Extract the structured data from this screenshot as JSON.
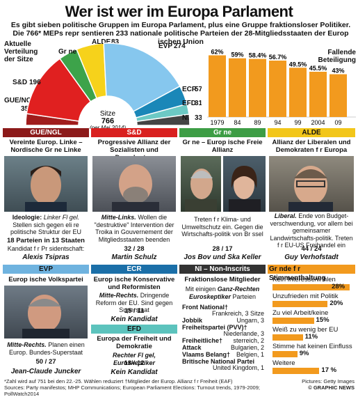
{
  "title": "Wer ist wer im Europa Parlament",
  "subtitle": "Es gibt sieben politische Gruppen im Europa Parlament, plus eine Gruppe fraktionsloser Politiker. Die 766* MEPs repr  sentieren 233 nationale politische Parteien der 28-Mitgliedsstaaten der Europ   ischen Union",
  "left_caption": [
    "Aktuelle",
    "Verteilung",
    "der Sitze"
  ],
  "right_caption": [
    "Fallende",
    "Beteiligung"
  ],
  "seats": {
    "center_label": "Sitze",
    "total": "766",
    "note": "(per Mai 2014)",
    "groups": [
      {
        "name": "GUE/NGL",
        "seats": 35,
        "color": "#a01c1c"
      },
      {
        "name": "S&D",
        "seats": 196,
        "color": "#e02020"
      },
      {
        "name": "Gr ne",
        "seats": 57,
        "color": "#3da34a"
      },
      {
        "name": "ALDE",
        "seats": 83,
        "color": "#f6d21b"
      },
      {
        "name": "EVP",
        "seats": 274,
        "color": "#86c7ee"
      },
      {
        "name": "ECR",
        "seats": 57,
        "color": "#1a87b8"
      },
      {
        "name": "EFD",
        "seats": 31,
        "color": "#6cc9c4"
      },
      {
        "name": "NI",
        "seats": 33,
        "color": "#444444"
      }
    ]
  },
  "chart_data": {
    "type": "bar",
    "title": "Fallende Beteiligung",
    "categories": [
      "1979",
      "84",
      "89",
      "94",
      "99",
      "2004",
      "09"
    ],
    "values": [
      62,
      59,
      58.4,
      56.7,
      49.5,
      45.5,
      43
    ],
    "value_labels": [
      "62%",
      "59%",
      "58.4%",
      "56.7%",
      "49.5%",
      "45.5%",
      "43%"
    ],
    "ylim": [
      0,
      70
    ],
    "color": "#f29a1e"
  },
  "groups": {
    "gue": {
      "header": "GUE/NGL",
      "subtitle": "Vereinte Europ. Linke – Nordische Gr ne Linke",
      "text_b": "Ideologie:",
      "text_i": "Linker Fl gel.",
      "text": "Stellen sich gegen eli re politische Struktur der EU",
      "stat": "18 Parteien in 13 Staaten",
      "candidate_label": "Kandidat f r Pr sidentschaft:",
      "leader": "Alexis Tsipras"
    },
    "sd": {
      "header": "S&D",
      "subtitle": "Progressive Allianz der Sozialisten und Demokraten",
      "text_b": "Mitte-Links.",
      "text": "Wollen die \"destruktive\" Intervention der Troika in Gouvernement der Mitgliedsstaaten beenden",
      "stat": "32 / 28",
      "leader": "Martin Schulz"
    },
    "gruene": {
      "header": "Gr ne",
      "subtitle": "Gr ne – Europ   ische Freie Allianz",
      "text": "Treten f r Klima- und Umweltschutz ein. Gegen die Wirtschafts-politik von Br ssel",
      "stat": "28 / 17",
      "leader": "Jos  Bov   und Ska Keller"
    },
    "alde": {
      "header": "ALDE",
      "subtitle": "Allianz der Liberalen und Demokraten f r Europa",
      "text_b": "Liberal.",
      "text": "Ende von Budget-verschwendung, vor allem bei gemeinsamer Landwirtschafts-politik. Treten f r EU-US Freihandel ein",
      "stat": "44 / 24",
      "leader": "Guy Verhofstadt"
    },
    "evp": {
      "header": "EVP",
      "subtitle": "Europ   ische Volkspartei",
      "text_b": "Mitte-Rechts.",
      "text": "Planen einen Europ. Bundes-Superstaat",
      "stat": "50 / 27",
      "leader": "Jean-Claude Juncker"
    },
    "ecr": {
      "header": "ECR",
      "subtitle": "Europ ische Konservative und Reformisten",
      "text_b": "Mitte-Rechts.",
      "text": "Dringende Reform der EU. Sind gegen Superstaat",
      "stat": "15 / 11",
      "leader": "Kein Kandidat"
    },
    "efd": {
      "header": "EFD",
      "subtitle": "Europa der Freiheit und Demokratie",
      "text_b": "Rechter Fl gel, Euroskeptiker",
      "stat": "13 / 12",
      "leader": "Kein Kandidat"
    },
    "ni": {
      "header": "NI – Non-Inscrits",
      "subtitle": "Fraktionslose Mitglieder",
      "intro": "Mit einigen",
      "intro_b": "Ganz-Rechten Euroskeptiker",
      "intro_end": "Parteien",
      "parties": [
        {
          "name": "Front National†",
          "country": "Frankreich, 3 Sitze"
        },
        {
          "name": "Jobbik",
          "country": "Ungarn, 3"
        },
        {
          "name": "Freiheitspartei (PVV)†",
          "country": "Niederlande, 3"
        },
        {
          "name": "Freiheitliche†",
          "country": "  sterreich, 2"
        },
        {
          "name": "Attack",
          "country": "Bulgarien, 2"
        },
        {
          "name": "Vlaams Belang†",
          "country": "Belgien, 1"
        },
        {
          "name": "Britische National Partei",
          "country": "United Kingdom, 1"
        }
      ]
    }
  },
  "poll": {
    "header": "Gr nde f r Stimmenthaltung",
    "items": [
      {
        "label": "Kein Interesse/w hlen selten",
        "value": 28,
        "value_label": "28%"
      },
      {
        "label": "Unzufrieden mit Politik",
        "value": 20,
        "value_label": "20%"
      },
      {
        "label": "Zu viel Arbeit/keine Zeit/Arbeitet",
        "value": 15,
        "value_label": "15%"
      },
      {
        "label": "Weiß zu wenig  ber EU",
        "value": 11,
        "value_label": "11%"
      },
      {
        "label": "Stimme hat keinen Einfluss",
        "value": 9,
        "value_label": "9%"
      },
      {
        "label": "Weitere",
        "value": 17,
        "value_label": "17 %"
      }
    ]
  },
  "footnotes": {
    "line1": "*Zahl wird auf 751 bei den 22.-25. Wählen reduziert    †Mitglieder der Europ. Allianz f r Freiheit (EAF)",
    "line2": "Sources: Party manifestos; MHP Communications; European Parliament Elections: Turnout trends, 1979-2009; PollWatch2014",
    "pictures": "Pictures: Getty Images",
    "copyright": "© GRAPHIC NEWS"
  }
}
